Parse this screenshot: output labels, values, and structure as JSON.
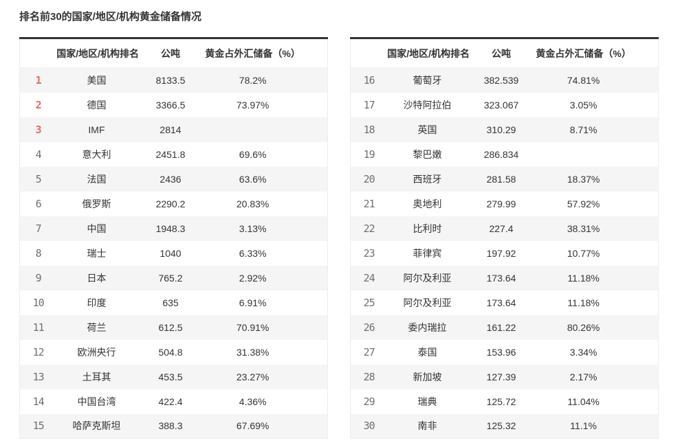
{
  "page_title": "排名前30的国家/地区/机构黄金储备情况",
  "colors": {
    "rank_top3": "#ea6a5f",
    "rank_normal": "#6f6f6f",
    "text": "#333333",
    "row_stripe": "#f5f5f5",
    "table_top_border": "#333333",
    "table_side_border": "#ededed"
  },
  "chart_data": {
    "type": "table",
    "title": "排名前30的国家/地区/机构黄金储备情况",
    "headers": {
      "rank": "",
      "name": "国家/地区/机构排名",
      "tons": "公吨",
      "pct": "黄金占外汇储备（%）"
    },
    "tables": [
      {
        "rows": [
          {
            "rank": "1",
            "name": "美国",
            "tons": "8133.5",
            "pct": "78.2%"
          },
          {
            "rank": "2",
            "name": "德国",
            "tons": "3366.5",
            "pct": "73.97%"
          },
          {
            "rank": "3",
            "name": "IMF",
            "tons": "2814",
            "pct": ""
          },
          {
            "rank": "4",
            "name": "意大利",
            "tons": "2451.8",
            "pct": "69.6%"
          },
          {
            "rank": "5",
            "name": "法国",
            "tons": "2436",
            "pct": "63.6%"
          },
          {
            "rank": "6",
            "name": "俄罗斯",
            "tons": "2290.2",
            "pct": "20.83%"
          },
          {
            "rank": "7",
            "name": "中国",
            "tons": "1948.3",
            "pct": "3.13%"
          },
          {
            "rank": "8",
            "name": "瑞士",
            "tons": "1040",
            "pct": "6.33%"
          },
          {
            "rank": "9",
            "name": "日本",
            "tons": "765.2",
            "pct": "2.92%"
          },
          {
            "rank": "10",
            "name": "印度",
            "tons": "635",
            "pct": "6.91%"
          },
          {
            "rank": "11",
            "name": "荷兰",
            "tons": "612.5",
            "pct": "70.91%"
          },
          {
            "rank": "12",
            "name": "欧洲央行",
            "tons": "504.8",
            "pct": "31.38%"
          },
          {
            "rank": "13",
            "name": "土耳其",
            "tons": "453.5",
            "pct": "23.27%"
          },
          {
            "rank": "14",
            "name": "中国台湾",
            "tons": "422.4",
            "pct": "4.36%"
          },
          {
            "rank": "15",
            "name": "哈萨克斯坦",
            "tons": "388.3",
            "pct": "67.69%"
          }
        ]
      },
      {
        "rows": [
          {
            "rank": "16",
            "name": "葡萄牙",
            "tons": "382.539",
            "pct": "74.81%"
          },
          {
            "rank": "17",
            "name": "沙特阿拉伯",
            "tons": "323.067",
            "pct": "3.05%"
          },
          {
            "rank": "18",
            "name": "英国",
            "tons": "310.29",
            "pct": "8.71%"
          },
          {
            "rank": "19",
            "name": "黎巴嫩",
            "tons": "286.834",
            "pct": ""
          },
          {
            "rank": "20",
            "name": "西班牙",
            "tons": "281.58",
            "pct": "18.37%"
          },
          {
            "rank": "21",
            "name": "奥地利",
            "tons": "279.99",
            "pct": "57.92%"
          },
          {
            "rank": "22",
            "name": "比利时",
            "tons": "227.4",
            "pct": "38.31%"
          },
          {
            "rank": "23",
            "name": "菲律宾",
            "tons": "197.92",
            "pct": "10.77%"
          },
          {
            "rank": "24",
            "name": "阿尔及利亚",
            "tons": "173.64",
            "pct": "11.18%"
          },
          {
            "rank": "25",
            "name": "阿尔及利亚",
            "tons": "173.64",
            "pct": "11.18%"
          },
          {
            "rank": "26",
            "name": "委内瑞拉",
            "tons": "161.22",
            "pct": "80.26%"
          },
          {
            "rank": "27",
            "name": "泰国",
            "tons": "153.96",
            "pct": "3.34%"
          },
          {
            "rank": "28",
            "name": "新加坡",
            "tons": "127.39",
            "pct": "2.17%"
          },
          {
            "rank": "29",
            "name": "瑞典",
            "tons": "125.72",
            "pct": "11.04%"
          },
          {
            "rank": "30",
            "name": "南非",
            "tons": "125.32",
            "pct": "11.1%"
          }
        ]
      }
    ]
  }
}
